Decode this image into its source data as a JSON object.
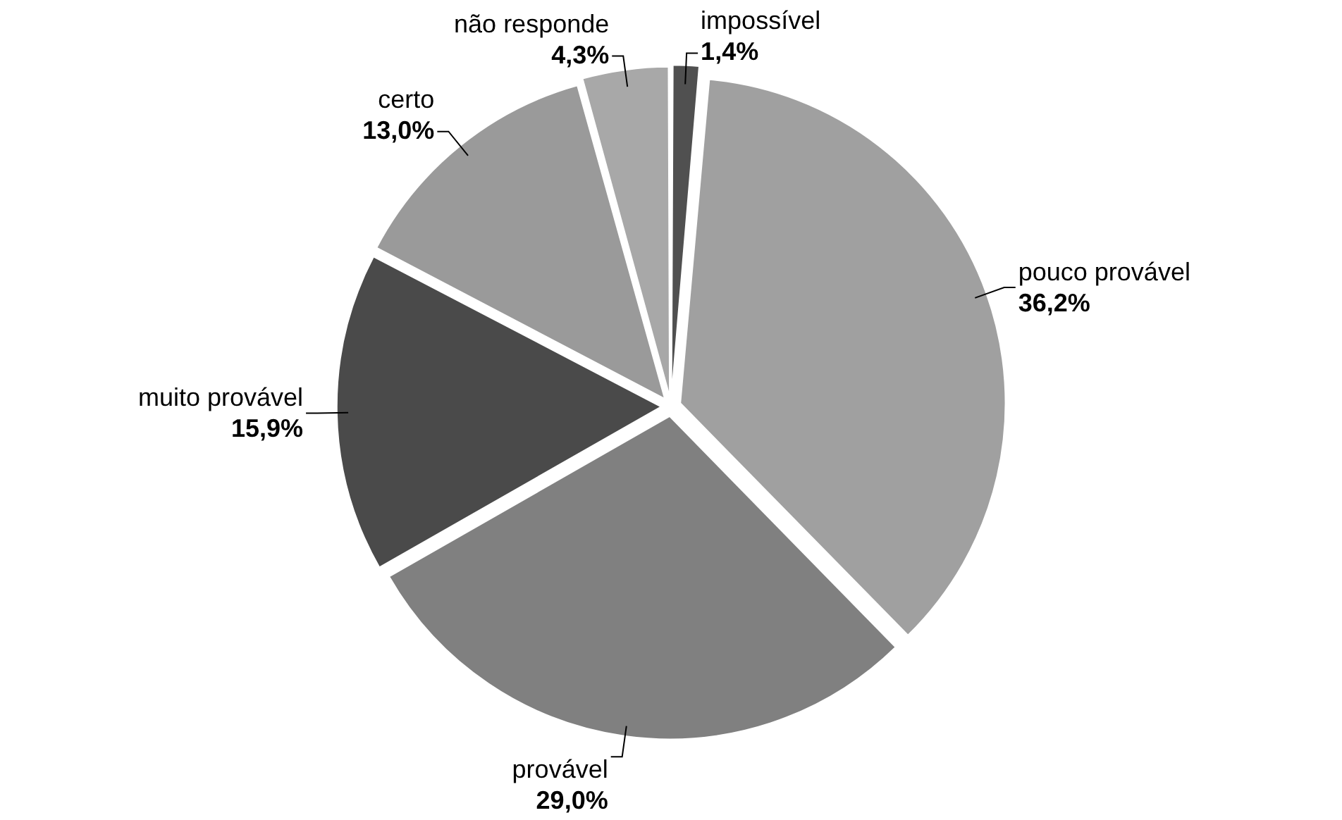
{
  "chart_data": {
    "type": "pie",
    "categories": [
      "impossível",
      "pouco provável",
      "provável",
      "muito provável",
      "certo",
      "não responde"
    ],
    "values": [
      1.4,
      36.2,
      29.0,
      15.9,
      13.0,
      4.3
    ],
    "value_labels": [
      "1,4%",
      "36,2%",
      "29,0%",
      "15,9%",
      "13,0%",
      "4,3%"
    ],
    "colors": [
      "#505050",
      "#a0a0a0",
      "#808080",
      "#4a4a4a",
      "#9a9a9a",
      "#a8a8a8"
    ],
    "legend": false
  }
}
